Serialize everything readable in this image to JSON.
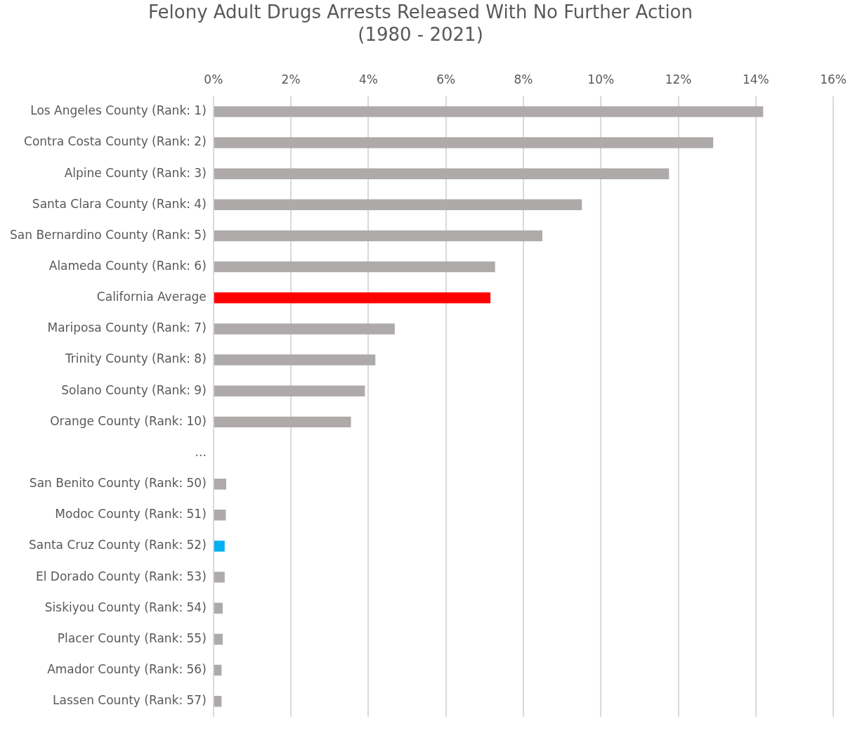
{
  "chart_data": {
    "type": "bar",
    "orientation": "horizontal",
    "title": "Felony Adult Drugs Arrests Released With No Further Action\n(1980 - 2021)",
    "categories": [
      "Los Angeles County (Rank: 1)",
      "Contra Costa County (Rank: 2)",
      "Alpine County (Rank: 3)",
      "Santa Clara County (Rank: 4)",
      "San Bernardino County (Rank: 5)",
      "Alameda County (Rank: 6)",
      "California Average",
      "Mariposa County (Rank: 7)",
      "Trinity County (Rank: 8)",
      "Solano County (Rank: 9)",
      "Orange County (Rank: 10)",
      "...",
      "San Benito County (Rank: 50)",
      "Modoc County (Rank: 51)",
      "Santa Cruz County (Rank: 52)",
      "El Dorado County (Rank: 53)",
      "Siskiyou County (Rank: 54)",
      "Placer County (Rank: 55)",
      "Amador County (Rank: 56)",
      "Lassen County (Rank: 57)"
    ],
    "values": [
      14.19,
      12.9,
      11.76,
      9.51,
      8.49,
      7.27,
      7.15,
      4.68,
      4.18,
      3.91,
      3.55,
      null,
      0.33,
      0.32,
      0.29,
      0.29,
      0.24,
      0.24,
      0.21,
      0.21
    ],
    "colors": [
      "#aeaaaa",
      "#aeaaaa",
      "#aeaaaa",
      "#aeaaaa",
      "#aeaaaa",
      "#aeaaaa",
      "#ff0000",
      "#aeaaaa",
      "#aeaaaa",
      "#aeaaaa",
      "#aeaaaa",
      "#aeaaaa",
      "#aeaaaa",
      "#aeaaaa",
      "#00b0f0",
      "#aeaaaa",
      "#aeaaaa",
      "#aeaaaa",
      "#aeaaaa",
      "#aeaaaa"
    ],
    "xlim": [
      0,
      16
    ],
    "xticks": [
      {
        "value": 0,
        "label": "0%"
      },
      {
        "value": 2,
        "label": "2%"
      },
      {
        "value": 4,
        "label": "4%"
      },
      {
        "value": 6,
        "label": "6%"
      },
      {
        "value": 8,
        "label": "8%"
      },
      {
        "value": 10,
        "label": "10%"
      },
      {
        "value": 12,
        "label": "12%"
      },
      {
        "value": 14,
        "label": "14%"
      },
      {
        "value": 16,
        "label": "16%"
      }
    ],
    "grid": "x",
    "legend": false
  }
}
